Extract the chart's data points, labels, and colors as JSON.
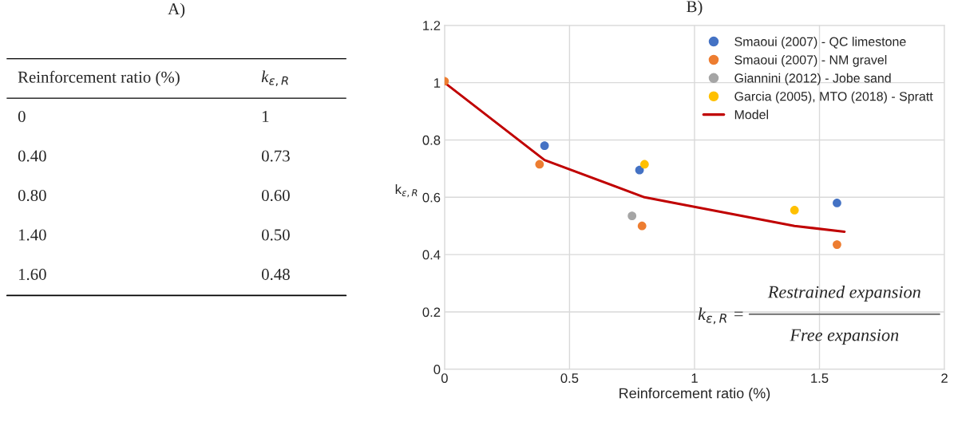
{
  "chart_data": [
    {
      "type": "other",
      "title": "A)",
      "annotations": [
        "Reinforcement ratio (%)",
        "k$_{ε,R}$",
        "0",
        "1",
        "0.40",
        "0.73",
        "0.80",
        "0.60",
        "1.40",
        "0.50",
        "1.60",
        "0.48"
      ]
    },
    {
      "type": "scatter",
      "title": "B)",
      "xlabel": "Reinforcement ratio (%)",
      "ylabel": "k$_{ε,R}$",
      "xlim": [
        0,
        2
      ],
      "xticks": [
        0,
        0.5,
        1,
        1.5,
        2
      ],
      "ylim": [
        0,
        1.2
      ],
      "yticks": [
        0,
        0.2,
        0.4,
        0.6,
        0.8,
        1,
        1.2
      ],
      "grid": true,
      "legend": "top right",
      "marker": "circle",
      "series": [
        {
          "name": "Smaoui (2007) - QC limestone",
          "color": "#4472c4",
          "x": [
            0.4,
            0.78,
            1.57
          ],
          "values": [
            0.78,
            0.695,
            0.58
          ]
        },
        {
          "name": "Smaoui (2007) - NM gravel",
          "color": "#ed7d31",
          "x": [
            0,
            0.38,
            0.79,
            1.57
          ],
          "values": [
            1.005,
            0.715,
            0.5,
            0.435
          ]
        },
        {
          "name": "Giannini (2012) - Jobe sand",
          "color": "#a5a5a5",
          "x": [
            0.75
          ],
          "values": [
            0.535
          ]
        },
        {
          "name": "Garcia (2005), MTO (2018) - Spratt",
          "color": "#ffc000",
          "x": [
            0.8,
            1.4
          ],
          "values": [
            0.715,
            0.555
          ]
        },
        {
          "name": "Model",
          "type": "line",
          "marker": "none",
          "color": "#c00000",
          "x": [
            0,
            0.4,
            0.8,
            1.4,
            1.6
          ],
          "values": [
            1,
            0.73,
            0.6,
            0.5,
            0.48
          ]
        }
      ],
      "annotations": [
        "k$_{ε,R}$ =",
        "Restrained expansion",
        "Free expansion"
      ]
    }
  ]
}
